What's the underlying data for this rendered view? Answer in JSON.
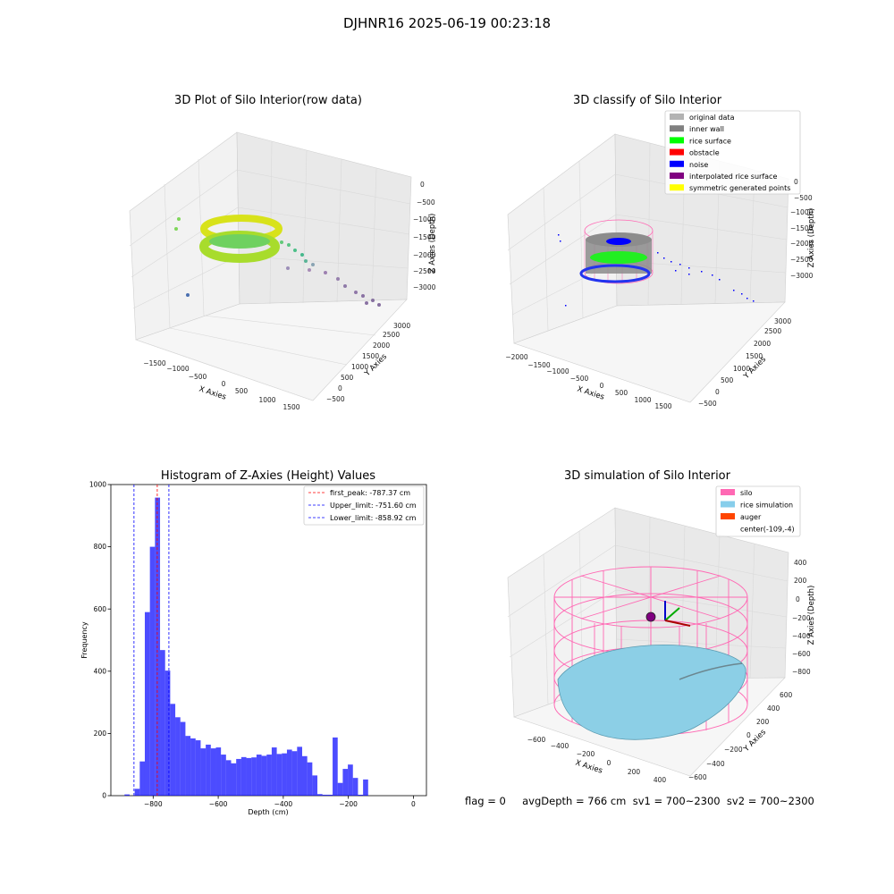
{
  "suptitle": "DJHNR16 2025-06-19 00:23:18",
  "status_line": "flag = 0     avgDepth = 766 cm  sv1 = 700~2300  sv2 = 700~2300",
  "panel_raw": {
    "title": "3D Plot of Silo Interior(row data)",
    "xlabel": "X Axies",
    "ylabel": "Y Axies",
    "zlabel": "Z Axies (Depth)",
    "xticks": [
      "−1500",
      "−1000",
      "−500",
      "0",
      "500",
      "1000",
      "1500"
    ],
    "yticks": [
      "−500",
      "0",
      "500",
      "1000",
      "1500",
      "2000",
      "2500",
      "3000"
    ],
    "zticks": [
      "0",
      "−500",
      "−1000",
      "−1500",
      "−2000",
      "−2500",
      "−3000"
    ]
  },
  "panel_classify": {
    "title": "3D classify of Silo Interior",
    "xlabel": "X Axies",
    "ylabel": "Y Axies",
    "zlabel": "Z Axies (Depth)",
    "xticks": [
      "−2000",
      "−1500",
      "−1000",
      "−500",
      "0",
      "500",
      "1000",
      "1500"
    ],
    "yticks": [
      "−500",
      "0",
      "500",
      "1000",
      "1500",
      "2000",
      "2500",
      "3000"
    ],
    "zticks": [
      "0",
      "−500",
      "−1000",
      "−1500",
      "−2000",
      "−2500",
      "−3000"
    ],
    "legend": [
      {
        "label": "original data",
        "color": "#b3b3b3"
      },
      {
        "label": "inner wall",
        "color": "#808080"
      },
      {
        "label": "rice surface",
        "color": "#00ff00"
      },
      {
        "label": "obstacle",
        "color": "#ff0000"
      },
      {
        "label": "noise",
        "color": "#0000ff"
      },
      {
        "label": "interpolated rice surface",
        "color": "#800080"
      },
      {
        "label": "symmetric generated points",
        "color": "#ffff00"
      }
    ]
  },
  "panel_sim": {
    "title": "3D simulation of Silo Interior",
    "xlabel": "X Axies",
    "ylabel": "Y Axies",
    "zlabel": "Z Axies (Depth)",
    "xticks": [
      "−600",
      "−400",
      "−200",
      "0",
      "200",
      "400"
    ],
    "yticks": [
      "−600",
      "−400",
      "−200",
      "0",
      "200",
      "400",
      "600"
    ],
    "zticks": [
      "400",
      "200",
      "0",
      "−200",
      "−400",
      "−600",
      "−800"
    ],
    "legend": [
      {
        "label": "silo",
        "color": "#ff69b4"
      },
      {
        "label": "rice simulation",
        "color": "#87ceeb"
      },
      {
        "label": "auger",
        "color": "#ff4500"
      },
      {
        "label": "center(-109,-4)",
        "color": ""
      }
    ]
  },
  "chart_data": [
    {
      "type": "histogram",
      "title": "Histogram of Z-Axies (Height) Values",
      "xlabel": "Depth (cm)",
      "ylabel": "Frequency",
      "xlim": [
        -930,
        40
      ],
      "ylim": [
        0,
        1000
      ],
      "xticks": [
        -800,
        -600,
        -400,
        -200,
        0
      ],
      "yticks": [
        0,
        200,
        400,
        600,
        800,
        1000
      ],
      "color": "#0000ff",
      "bin_edges_start": -888,
      "bin_width": 15.6,
      "counts": [
        4,
        0,
        22,
        110,
        590,
        800,
        958,
        468,
        402,
        295,
        252,
        237,
        192,
        184,
        178,
        152,
        164,
        152,
        155,
        132,
        114,
        104,
        118,
        124,
        121,
        123,
        132,
        128,
        132,
        155,
        134,
        136,
        148,
        143,
        157,
        127,
        107,
        65,
        5,
        3,
        3,
        187,
        41,
        86,
        100,
        57,
        3,
        52
      ],
      "vlines": [
        {
          "label": "first_peak: -787.37 cm",
          "x": -787.37,
          "color": "#ff0000"
        },
        {
          "label": "Upper_limit: -751.60 cm",
          "x": -751.6,
          "color": "#0000ff"
        },
        {
          "label": "Lower_limit: -858.92 cm",
          "x": -858.92,
          "color": "#0000ff"
        }
      ]
    }
  ]
}
